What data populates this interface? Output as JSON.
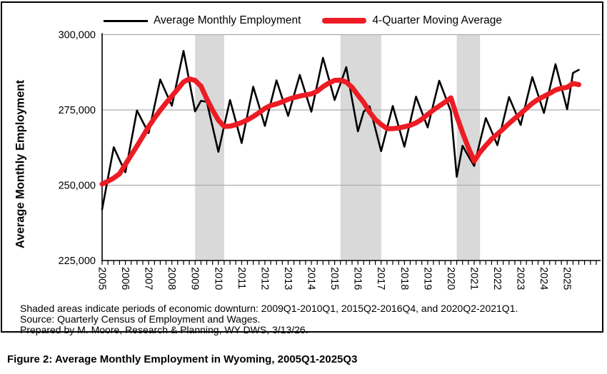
{
  "figure": {
    "caption": "Figure 2: Average Monthly Employment in Wyoming, 2005Q1-2025Q3",
    "notes": [
      "Shaded areas indicate periods of economic downturn: 2009Q1-2010Q1, 2015Q2-2016Q4, and 2020Q2-2021Q1.",
      "Source: Quarterly Census of Employment and Wages.",
      "Prepared by M. Moore, Research & Planning, WY DWS, 3/13/26."
    ]
  },
  "legend": [
    {
      "label": "Average Monthly Employment",
      "color": "#000000"
    },
    {
      "label": "4-Quarter Moving Average",
      "color": "#ec1c24"
    }
  ],
  "chart_data": {
    "type": "line",
    "title": "",
    "xlabel": "",
    "ylabel": "Average Monthly Employment",
    "frequency": "quarterly",
    "x_start": "2005Q1",
    "x_end": "2025Q3",
    "year_tick_labels": [
      "2005",
      "2006",
      "2007",
      "2008",
      "2009",
      "2010",
      "2011",
      "2012",
      "2013",
      "2014",
      "2015",
      "2016",
      "2017",
      "2018",
      "2019",
      "2020",
      "2021",
      "2022",
      "2023",
      "2024",
      "2025"
    ],
    "y_ticks": [
      225000,
      250000,
      275000,
      300000
    ],
    "y_tick_labels": [
      "225,000",
      "250,000",
      "275,000",
      "300,000"
    ],
    "ylim": [
      225000,
      300000
    ],
    "grid": true,
    "legend_position": "top",
    "gridline_color": "#adadad",
    "band_color": "#d9d9d9",
    "shaded_bands": [
      {
        "from": "2009Q1",
        "to": "2010Q1"
      },
      {
        "from": "2015Q2",
        "to": "2016Q4"
      },
      {
        "from": "2020Q2",
        "to": "2021Q1"
      }
    ],
    "series": [
      {
        "name": "Average Monthly Employment",
        "color": "#000000",
        "width": 2.6,
        "values": [
          242000,
          252300,
          262600,
          258400,
          254300,
          264500,
          274800,
          271000,
          267300,
          276200,
          285100,
          280700,
          276400,
          285500,
          294600,
          284500,
          274500,
          278000,
          277700,
          269400,
          261100,
          269700,
          278300,
          271200,
          264000,
          273400,
          282700,
          276200,
          269700,
          277300,
          284800,
          278900,
          273000,
          279800,
          286600,
          280500,
          274400,
          283400,
          292300,
          285300,
          278300,
          283800,
          289200,
          278500,
          267900,
          274400,
          276200,
          268800,
          261300,
          268800,
          276300,
          269500,
          262800,
          271000,
          279400,
          274300,
          269200,
          277000,
          284700,
          279600,
          274500,
          252800,
          263100,
          259700,
          256400,
          264400,
          272300,
          267900,
          263300,
          271300,
          279300,
          274700,
          270000,
          278000,
          285900,
          280000,
          274000,
          282100,
          290200,
          282600,
          275200,
          287300,
          288300
        ]
      },
      {
        "name": "4-Quarter Moving Average",
        "color": "#ec1c24",
        "width": 7,
        "values": [
          250400,
          251300,
          252400,
          253800,
          256900,
          260000,
          263000,
          266200,
          269400,
          272300,
          274900,
          277300,
          279600,
          281900,
          284300,
          285300,
          284800,
          282900,
          278700,
          274900,
          271600,
          269500,
          269600,
          270100,
          270800,
          271700,
          272800,
          274100,
          275500,
          276500,
          277000,
          277700,
          278500,
          279100,
          279600,
          280000,
          280300,
          281200,
          282700,
          283900,
          284800,
          284900,
          284200,
          282500,
          279900,
          277500,
          274300,
          271800,
          270200,
          268800,
          268800,
          269000,
          269400,
          269900,
          270700,
          271900,
          273500,
          275000,
          276300,
          277600,
          279000,
          272900,
          267500,
          262500,
          258000,
          260900,
          263200,
          265300,
          267000,
          268700,
          270500,
          272200,
          273800,
          275500,
          277200,
          278500,
          279500,
          280500,
          281600,
          282200,
          282500,
          283800,
          283400
        ]
      }
    ]
  }
}
